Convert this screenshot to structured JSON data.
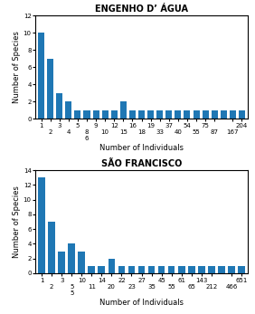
{
  "chart_data": [
    {
      "type": "bar",
      "title": "ENGENHO D’ ÁGUA",
      "xlabel": "Number of Individuals",
      "ylabel": "Number of Species",
      "categories": [
        "1",
        "2",
        "3",
        "4",
        "5",
        "8\n6",
        "9",
        "10",
        "12",
        "15",
        "16",
        "18",
        "19",
        "33",
        "37",
        "40",
        "54",
        "55",
        "75",
        "87",
        null,
        "167",
        "204"
      ],
      "values": [
        10,
        7,
        3,
        2,
        1,
        1,
        1,
        1,
        1,
        2,
        1,
        1,
        1,
        1,
        1,
        1,
        1,
        1,
        1,
        1,
        1,
        1,
        1
      ],
      "ylim": [
        0,
        12
      ],
      "yticks": [
        0,
        2,
        4,
        6,
        8,
        10,
        12
      ]
    },
    {
      "type": "bar",
      "title": "SÃO FRANCISCO",
      "xlabel": "Number of Individuals",
      "ylabel": "Number of Species",
      "categories": [
        "1",
        "2",
        "3",
        "5\n5",
        "10",
        "11",
        "14",
        "20",
        "22",
        "23",
        "27",
        "35",
        "45",
        "55",
        "61",
        "65",
        "143",
        "212",
        null,
        "466",
        "651"
      ],
      "values": [
        13,
        7,
        3,
        4,
        3,
        1,
        1,
        2,
        1,
        1,
        1,
        1,
        1,
        1,
        1,
        1,
        1,
        1,
        1,
        1,
        1
      ],
      "ylim": [
        0,
        14
      ],
      "yticks": [
        0,
        2,
        4,
        6,
        8,
        10,
        12,
        14
      ]
    }
  ]
}
